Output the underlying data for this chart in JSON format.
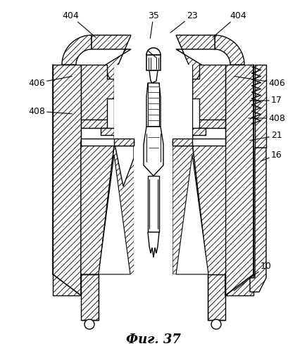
{
  "title": "Фиг. 37",
  "bg_color": "#ffffff",
  "line_color": "#000000",
  "hatch": "////",
  "labels": {
    "35": [
      218,
      22,
      213,
      57
    ],
    "23": [
      273,
      22,
      240,
      48
    ],
    "404L": [
      100,
      22,
      138,
      55
    ],
    "404R": [
      338,
      22,
      300,
      55
    ],
    "406L": [
      52,
      118,
      105,
      108
    ],
    "406R": [
      393,
      118,
      330,
      108
    ],
    "17": [
      393,
      143,
      352,
      143
    ],
    "408L": [
      52,
      158,
      105,
      162
    ],
    "408R": [
      393,
      168,
      350,
      168
    ],
    "21": [
      393,
      193,
      352,
      200
    ],
    "16": [
      393,
      220,
      368,
      230
    ],
    "10": [
      378,
      378,
      330,
      415
    ]
  }
}
